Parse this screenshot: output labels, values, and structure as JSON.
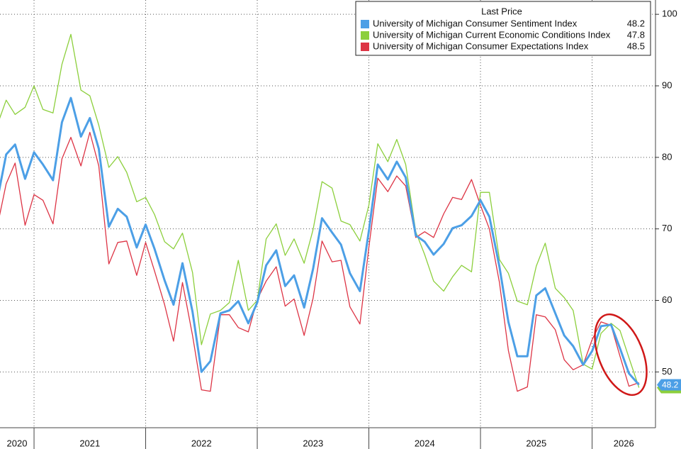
{
  "chart_data": {
    "type": "line",
    "legend_title": "Last Price",
    "x": [
      2020.67,
      2020.75,
      2020.83,
      2020.92,
      2021.0,
      2021.08,
      2021.17,
      2021.25,
      2021.33,
      2021.42,
      2021.5,
      2021.58,
      2021.67,
      2021.75,
      2021.83,
      2021.92,
      2022.0,
      2022.08,
      2022.17,
      2022.25,
      2022.33,
      2022.42,
      2022.5,
      2022.58,
      2022.67,
      2022.75,
      2022.83,
      2022.92,
      2023.0,
      2023.08,
      2023.17,
      2023.25,
      2023.33,
      2023.42,
      2023.5,
      2023.58,
      2023.67,
      2023.75,
      2023.83,
      2023.92,
      2024.0,
      2024.08,
      2024.17,
      2024.25,
      2024.33,
      2024.42,
      2024.5,
      2024.58,
      2024.67,
      2024.75,
      2024.83,
      2024.92,
      2025.0,
      2025.08,
      2025.17,
      2025.25,
      2025.33,
      2025.42,
      2025.5,
      2025.58,
      2025.67,
      2025.75,
      2025.83,
      2025.92,
      2026.0,
      2026.08,
      2026.17,
      2026.25,
      2026.33,
      2026.42
    ],
    "xlim": [
      2020.695,
      2026.568
    ],
    "xticks": [
      2021,
      2022,
      2023,
      2024,
      2025,
      2026
    ],
    "year_labels": [
      "2020",
      "2021",
      "2022",
      "2023",
      "2024",
      "2025",
      "2026"
    ],
    "ylim": [
      42.2,
      102
    ],
    "yticks": [
      50,
      60,
      70,
      80,
      90,
      100
    ],
    "grid": true,
    "series": [
      {
        "name": "University of Michigan Consumer Sentiment Index",
        "color": "#4c9fe6",
        "width": 3,
        "values": [
          74,
          80.4,
          81.8,
          77.0,
          80.7,
          79.0,
          76.8,
          84.9,
          88.3,
          82.9,
          85.5,
          81.2,
          70.3,
          72.8,
          71.7,
          67.4,
          70.6,
          67.2,
          62.8,
          59.4,
          65.2,
          58.4,
          50.0,
          51.5,
          58.2,
          58.6,
          59.9,
          56.8,
          59.7,
          64.9,
          67.0,
          62.0,
          63.5,
          59.0,
          64.4,
          71.5,
          69.5,
          67.8,
          63.8,
          61.3,
          69.7,
          79.0,
          76.9,
          79.4,
          77.2,
          69.1,
          68.2,
          66.4,
          67.9,
          70.1,
          70.5,
          71.8,
          74.0,
          71.7,
          64.7,
          57.0,
          52.2,
          52.2,
          60.7,
          61.7,
          58.2,
          55.1,
          53.6,
          51.0,
          52.9,
          56.4,
          56.6,
          53.3,
          49.8,
          48.2
        ]
      },
      {
        "name": "University of Michigan Current Economic Conditions Index",
        "color": "#8ccf3c",
        "width": 1.3,
        "values": [
          84.5,
          88.0,
          86.0,
          87.0,
          90.0,
          86.7,
          86.2,
          93.0,
          97.2,
          89.4,
          88.6,
          84.5,
          78.6,
          80.1,
          77.9,
          73.8,
          74.4,
          72.0,
          68.2,
          67.2,
          69.4,
          63.9,
          53.8,
          58.1,
          58.6,
          59.7,
          65.6,
          58.6,
          60.0,
          68.6,
          70.7,
          66.3,
          68.6,
          65.2,
          69.9,
          76.6,
          75.7,
          71.1,
          70.6,
          68.3,
          73.3,
          81.9,
          79.4,
          82.5,
          79.0,
          69.6,
          66.4,
          62.7,
          61.3,
          63.3,
          64.9,
          64.0,
          75.1,
          75.1,
          65.7,
          63.8,
          59.9,
          59.4,
          64.8,
          68.0,
          61.7,
          60.4,
          58.6,
          51.1,
          50.4,
          55.4,
          56.8,
          55.8,
          52.0,
          47.8
        ]
      },
      {
        "name": "University of Michigan Consumer Expectations Index",
        "color": "#dd3445",
        "width": 1.3,
        "values": [
          70.3,
          76.3,
          79.2,
          70.5,
          74.8,
          74.0,
          70.7,
          79.8,
          82.8,
          78.8,
          83.5,
          78.8,
          65.1,
          68.1,
          68.3,
          63.5,
          68.1,
          64.1,
          59.4,
          54.3,
          62.5,
          55.1,
          47.5,
          47.3,
          58.0,
          58.0,
          56.2,
          55.6,
          60.1,
          62.7,
          64.7,
          59.2,
          60.2,
          55.1,
          60.3,
          68.3,
          65.4,
          65.6,
          59.1,
          56.7,
          67.4,
          77.1,
          75.2,
          77.4,
          76.0,
          68.8,
          69.6,
          68.8,
          72.1,
          74.4,
          74.1,
          76.9,
          73.3,
          70.0,
          62.5,
          53.0,
          47.3,
          47.9,
          58.0,
          57.7,
          55.9,
          51.7,
          50.3,
          51.0,
          54.5,
          57.0,
          56.5,
          52.2,
          48.0,
          48.5
        ]
      }
    ]
  }
}
